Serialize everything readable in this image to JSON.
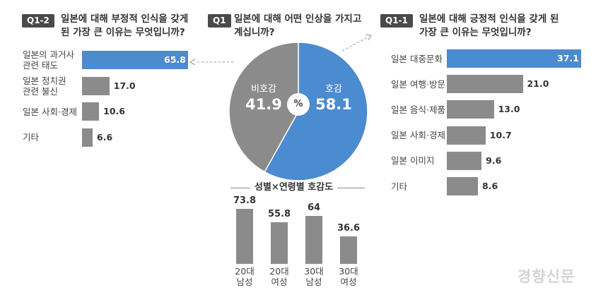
{
  "q1": {
    "badge": "Q1",
    "title": "일본에 대해 어떤 인상을 가지고\n계십니까?",
    "center_label": "%"
  },
  "q1_2": {
    "badge": "Q1-2",
    "title": "일본에 대해 부정적 인식을 갖게\n된 가장 큰 이유는 무엇입니까?"
  },
  "q1_1": {
    "badge": "Q1-1",
    "title": "일본에 대해 긍정적 인식을 갖게 된\n가장 큰 이유는 무엇입니까?"
  },
  "gender_age": {
    "title": "성별×연령별 호감도"
  },
  "watermark": "경향신문",
  "colors": {
    "blue": "#4b8bd0",
    "gray": "#8b8b8b",
    "badge": "#4a4a4a"
  },
  "chart_data": [
    {
      "id": "q1",
      "type": "pie",
      "title": "일본에 대해 어떤 인상을 가지고 계십니까?",
      "unit": "%",
      "slices": [
        {
          "name": "호감",
          "value": 58.1,
          "color": "#4b8bd0"
        },
        {
          "name": "비호감",
          "value": 41.9,
          "color": "#8b8b8b"
        }
      ]
    },
    {
      "id": "q1_2",
      "type": "bar",
      "orientation": "horizontal",
      "title": "일본에 대해 부정적 인식을 갖게 된 가장 큰 이유는 무엇입니까?",
      "categories": [
        "일본의 과거사\n관련 태도",
        "일본 정치권\n관련 불신",
        "일본 사회·경제",
        "기타"
      ],
      "values": [
        65.8,
        17.0,
        10.6,
        6.6
      ],
      "labels": [
        "65.8",
        "17.0",
        "10.6",
        "6.6"
      ],
      "highlight_index": 0,
      "xlim": [
        0,
        65.8
      ]
    },
    {
      "id": "q1_1",
      "type": "bar",
      "orientation": "horizontal",
      "title": "일본에 대해 긍정적 인식을 갖게 된 가장 큰 이유는 무엇입니까?",
      "categories": [
        "일본 대중문화",
        "일본 여행·방문",
        "일본 음식·제품",
        "일본 사회·경제",
        "일본 이미지",
        "기타"
      ],
      "values": [
        37.1,
        21.0,
        13.0,
        10.7,
        9.6,
        8.6
      ],
      "labels": [
        "37.1",
        "21.0",
        "13.0",
        "10.7",
        "9.6",
        "8.6"
      ],
      "highlight_index": 0,
      "xlim": [
        0,
        37.1
      ]
    },
    {
      "id": "gender_age",
      "type": "bar",
      "orientation": "vertical",
      "title": "성별×연령별 호감도",
      "categories": [
        "20대\n남성",
        "20대\n여성",
        "30대\n남성",
        "30대\n여성"
      ],
      "values": [
        73.8,
        55.8,
        64,
        36.6
      ],
      "labels": [
        "73.8",
        "55.8",
        "64",
        "36.6"
      ],
      "ylim": [
        0,
        73.8
      ]
    }
  ]
}
